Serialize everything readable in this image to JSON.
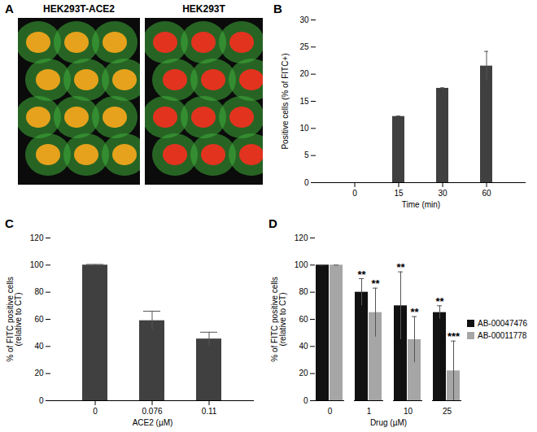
{
  "image_panel": {
    "panel": "A",
    "captions": [
      "HEK293T-ACE2",
      "HEK293T"
    ]
  },
  "chart_data": [
    {
      "panel": "B",
      "type": "bar",
      "xlabel": "Time (min)",
      "ylabel": "Positive cells (% of FITC+)",
      "categories": [
        0,
        15,
        30,
        60
      ],
      "values": [
        0,
        12.2,
        17.4,
        21.5
      ],
      "errors": [
        0,
        0.1,
        0.1,
        2.7
      ],
      "color": "#404040",
      "ylim": [
        0,
        30
      ],
      "yticks": [
        0,
        5,
        10,
        15,
        20,
        25,
        30
      ]
    },
    {
      "panel": "C",
      "type": "bar",
      "xlabel": "ACE2 (µM)",
      "ylabel": [
        "% of FITC positive cells",
        "(relative to CT)"
      ],
      "categories": [
        0,
        0.076,
        0.11
      ],
      "values": [
        100,
        59,
        45.5
      ],
      "errors": [
        0.5,
        7,
        5
      ],
      "color": "#404040",
      "ylim": [
        0,
        120
      ],
      "yticks": [
        0,
        20,
        40,
        60,
        80,
        100,
        120
      ]
    },
    {
      "panel": "D",
      "type": "bar",
      "xlabel": "Drug (µM)",
      "ylabel": [
        "% of FITC positive cells",
        "(relative to CT)"
      ],
      "categories": [
        0,
        1,
        10,
        25
      ],
      "legend": "right",
      "series": [
        {
          "name": "AB-00047476",
          "color": "#111111",
          "values": [
            100,
            80,
            70,
            65
          ],
          "errors": [
            0,
            10,
            25,
            5
          ],
          "annotations": [
            null,
            "**",
            "**",
            "**"
          ]
        },
        {
          "name": "AB-00011778",
          "color": "#a6a6a6",
          "values": [
            100,
            65,
            45,
            22
          ],
          "errors": [
            0,
            18,
            17,
            22
          ],
          "annotations": [
            null,
            "**",
            "**",
            "***"
          ]
        }
      ],
      "ylim": [
        0,
        120
      ],
      "yticks": [
        0,
        20,
        40,
        60,
        80,
        100,
        120
      ]
    }
  ]
}
